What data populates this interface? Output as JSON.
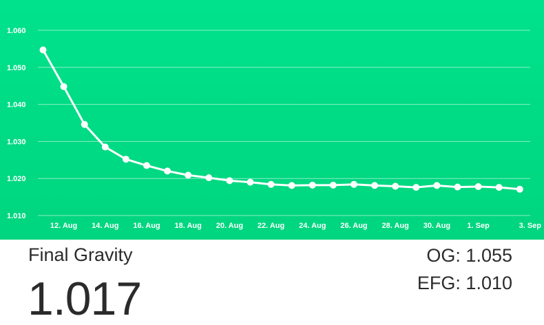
{
  "summary": {
    "title": "Final Gravity",
    "value": "1.017",
    "og": "OG: 1.055",
    "efg": "EFG: 1.010"
  },
  "chart_data": {
    "type": "line",
    "title": "",
    "xlabel": "",
    "ylabel": "",
    "ylim": [
      1.01,
      1.06
    ],
    "yticks": [
      "1.010",
      "1.020",
      "1.030",
      "1.040",
      "1.050",
      "1.060"
    ],
    "xticks": [
      "12. Aug",
      "14. Aug",
      "16. Aug",
      "18. Aug",
      "20. Aug",
      "22. Aug",
      "24. Aug",
      "26. Aug",
      "28. Aug",
      "30. Aug",
      "1. Sep",
      "3. Sep"
    ],
    "grid": true,
    "legend": "none",
    "colors": {
      "background": "#00dc86",
      "line": "#ffffff",
      "text": "#ffffff"
    },
    "series": [
      {
        "x": [
          "2016-08-11",
          "2016-08-12",
          "2016-08-13",
          "2016-08-14",
          "2016-08-15",
          "2016-08-16",
          "2016-08-17",
          "2016-08-18",
          "2016-08-19",
          "2016-08-20",
          "2016-08-21",
          "2016-08-22",
          "2016-08-23",
          "2016-08-24",
          "2016-08-25",
          "2016-08-26",
          "2016-08-27",
          "2016-08-28",
          "2016-08-29",
          "2016-08-30",
          "2016-08-31",
          "2016-09-01",
          "2016-09-02",
          "2016-09-03"
        ],
        "values": [
          1.0547,
          1.0448,
          1.0346,
          1.0285,
          1.0252,
          1.0235,
          1.022,
          1.0209,
          1.0202,
          1.0194,
          1.019,
          1.0184,
          1.0181,
          1.0182,
          1.0182,
          1.0184,
          1.0181,
          1.0179,
          1.0176,
          1.0181,
          1.0177,
          1.0178,
          1.0176,
          1.0171
        ]
      }
    ]
  }
}
